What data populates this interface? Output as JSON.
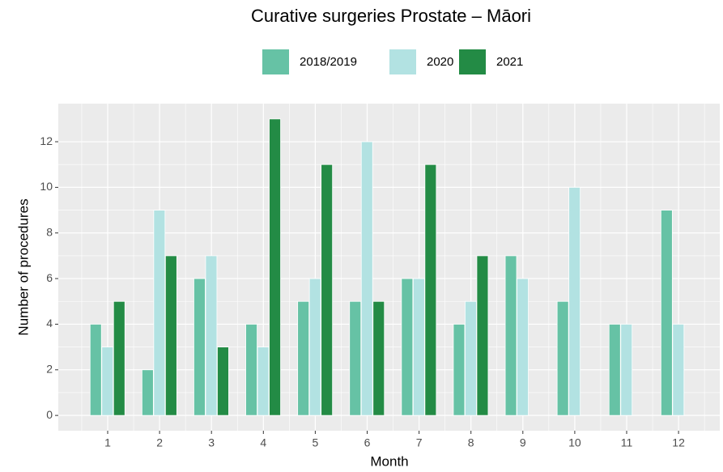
{
  "chart_data": {
    "type": "bar",
    "title": "Curative surgeries Prostate – Māori",
    "x_label": "Month",
    "y_label": "Number of procedures",
    "categories": [
      "1",
      "2",
      "3",
      "4",
      "5",
      "6",
      "7",
      "8",
      "9",
      "10",
      "11",
      "12"
    ],
    "series": [
      {
        "name": "2018/2019",
        "color": "#66c2a5",
        "values": [
          4,
          2,
          6,
          4,
          5,
          5,
          6,
          4,
          7,
          5,
          4,
          9
        ]
      },
      {
        "name": "2020",
        "color": "#b2e2e2",
        "values": [
          3,
          9,
          7,
          3,
          6,
          12,
          6,
          5,
          6,
          10,
          4,
          4
        ]
      },
      {
        "name": "2021",
        "color": "#238b45",
        "values": [
          5,
          7,
          3,
          13,
          11,
          5,
          11,
          7,
          null,
          null,
          null,
          null
        ]
      }
    ],
    "ylim": [
      -0.67,
      13.67
    ],
    "yticks": [
      0,
      2,
      4,
      6,
      8,
      10,
      12
    ],
    "grid": true,
    "legend": "top"
  }
}
